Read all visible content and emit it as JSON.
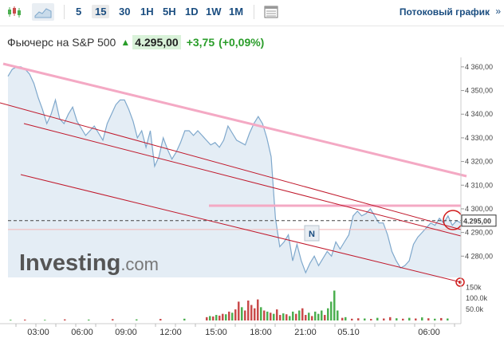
{
  "toolbar": {
    "timeframes": [
      "5",
      "15",
      "30",
      "1H",
      "5H",
      "1D",
      "1W",
      "1M"
    ],
    "active_timeframe": "15",
    "stream_label": "Потоковый график",
    "stream_arrow": "»"
  },
  "quote": {
    "name": "Фьючерс на S&P 500",
    "price": "4.295,00",
    "change": "+3,75",
    "change_pct": "(+0,09%)"
  },
  "watermark": {
    "brand": "Investing",
    "suffix": ".com"
  },
  "marker": {
    "label": "N"
  },
  "colors": {
    "price_line": "#7fa8cc",
    "price_fill": "#e4edf5",
    "channel": "#c0182b",
    "pink": "#f4a9c4",
    "up_volume": "#4caf50",
    "down_volume": "#c94b4b"
  },
  "chart_data": {
    "type": "area",
    "x_tick_labels": [
      "03:00",
      "06:00",
      "09:00",
      "12:00",
      "15:00",
      "18:00",
      "21:00",
      "05.10",
      "06:00"
    ],
    "y_ticks": [
      4280,
      4290,
      4300,
      4310,
      4320,
      4330,
      4340,
      4350,
      4360
    ],
    "y_tick_labels": [
      "4 280,00",
      "4 290,00",
      "4 300,00",
      "4 310,00",
      "4 320,00",
      "4 330,00",
      "4 340,00",
      "4 350,00",
      "4 360,00"
    ],
    "ylim": [
      4271,
      4364
    ],
    "last_price": 4295,
    "last_price_label": "4.295,00",
    "reference_level": 4291.25,
    "series": [
      {
        "values": [
          4356,
          4359,
          4360,
          4360,
          4359,
          4357,
          4353,
          4347,
          4342,
          4336,
          4340,
          4346,
          4338,
          4336,
          4340,
          4343,
          4337,
          4334,
          4331,
          4333,
          4335,
          4332,
          4329,
          4336,
          4340,
          4344,
          4346,
          4346,
          4342,
          4337,
          4330,
          4333,
          4326,
          4333,
          4318,
          4322,
          4330,
          4325,
          4321,
          4324,
          4328,
          4333,
          4333,
          4331,
          4333,
          4331,
          4329,
          4327,
          4328,
          4326,
          4329,
          4335,
          4332,
          4329,
          4328,
          4327,
          4332,
          4336,
          4339,
          4336,
          4330,
          4322,
          4296,
          4284,
          4286,
          4289,
          4278,
          4285,
          4278,
          4273,
          4277,
          4280,
          4276,
          4279,
          4282,
          4280,
          4286,
          4283,
          4286,
          4289,
          4297,
          4299,
          4297,
          4298,
          4300,
          4297,
          4294,
          4294,
          4289,
          4282,
          4278,
          4275,
          4276,
          4278,
          4285,
          4288,
          4290,
          4292,
          4294,
          4293,
          4296,
          4294,
          4297,
          4293,
          4295,
          4294
        ]
      }
    ],
    "volume": {
      "tick_labels": [
        "150k",
        "100.0k",
        "50.0k"
      ],
      "ticks": [
        150000,
        100000,
        50000
      ],
      "ylim": [
        0,
        180000
      ],
      "bars": [
        {
          "x": 12,
          "v": 3000,
          "up": true
        },
        {
          "x": 30,
          "v": 4000,
          "up": false
        },
        {
          "x": 55,
          "v": 3000,
          "up": true
        },
        {
          "x": 80,
          "v": 5000,
          "up": false
        },
        {
          "x": 110,
          "v": 4000,
          "up": true
        },
        {
          "x": 140,
          "v": 6000,
          "up": false
        },
        {
          "x": 170,
          "v": 5000,
          "up": true
        },
        {
          "x": 200,
          "v": 7000,
          "up": false
        },
        {
          "x": 230,
          "v": 8000,
          "up": true
        },
        {
          "x": 258,
          "v": 15000,
          "up": false
        },
        {
          "x": 262,
          "v": 20000,
          "up": true
        },
        {
          "x": 266,
          "v": 18000,
          "up": false
        },
        {
          "x": 270,
          "v": 25000,
          "up": true
        },
        {
          "x": 274,
          "v": 22000,
          "up": false
        },
        {
          "x": 278,
          "v": 30000,
          "up": false
        },
        {
          "x": 282,
          "v": 28000,
          "up": true
        },
        {
          "x": 286,
          "v": 40000,
          "up": false
        },
        {
          "x": 290,
          "v": 35000,
          "up": true
        },
        {
          "x": 294,
          "v": 50000,
          "up": false
        },
        {
          "x": 298,
          "v": 85000,
          "up": false
        },
        {
          "x": 302,
          "v": 60000,
          "up": true
        },
        {
          "x": 306,
          "v": 45000,
          "up": false
        },
        {
          "x": 310,
          "v": 90000,
          "up": false
        },
        {
          "x": 314,
          "v": 70000,
          "up": false
        },
        {
          "x": 318,
          "v": 55000,
          "up": false
        },
        {
          "x": 322,
          "v": 95000,
          "up": false
        },
        {
          "x": 326,
          "v": 60000,
          "up": true
        },
        {
          "x": 330,
          "v": 45000,
          "up": false
        },
        {
          "x": 334,
          "v": 40000,
          "up": true
        },
        {
          "x": 338,
          "v": 35000,
          "up": false
        },
        {
          "x": 342,
          "v": 30000,
          "up": true
        },
        {
          "x": 346,
          "v": 50000,
          "up": false
        },
        {
          "x": 350,
          "v": 25000,
          "up": false
        },
        {
          "x": 354,
          "v": 32000,
          "up": true
        },
        {
          "x": 358,
          "v": 28000,
          "up": false
        },
        {
          "x": 362,
          "v": 20000,
          "up": true
        },
        {
          "x": 366,
          "v": 40000,
          "up": true
        },
        {
          "x": 370,
          "v": 30000,
          "up": false
        },
        {
          "x": 374,
          "v": 45000,
          "up": true
        },
        {
          "x": 378,
          "v": 55000,
          "up": false
        },
        {
          "x": 382,
          "v": 25000,
          "up": false
        },
        {
          "x": 386,
          "v": 35000,
          "up": true
        },
        {
          "x": 390,
          "v": 20000,
          "up": false
        },
        {
          "x": 394,
          "v": 40000,
          "up": true
        },
        {
          "x": 398,
          "v": 30000,
          "up": true
        },
        {
          "x": 402,
          "v": 45000,
          "up": true
        },
        {
          "x": 406,
          "v": 25000,
          "up": false
        },
        {
          "x": 410,
          "v": 55000,
          "up": true
        },
        {
          "x": 414,
          "v": 85000,
          "up": true
        },
        {
          "x": 418,
          "v": 135000,
          "up": true
        },
        {
          "x": 422,
          "v": 45000,
          "up": true
        },
        {
          "x": 428,
          "v": 12000,
          "up": false
        },
        {
          "x": 432,
          "v": 15000,
          "up": true
        },
        {
          "x": 440,
          "v": 8000,
          "up": false
        },
        {
          "x": 448,
          "v": 10000,
          "up": false
        },
        {
          "x": 456,
          "v": 9000,
          "up": true
        },
        {
          "x": 464,
          "v": 7000,
          "up": false
        },
        {
          "x": 472,
          "v": 12000,
          "up": true
        },
        {
          "x": 480,
          "v": 9000,
          "up": false
        },
        {
          "x": 488,
          "v": 15000,
          "up": false
        },
        {
          "x": 496,
          "v": 10000,
          "up": true
        },
        {
          "x": 504,
          "v": 8000,
          "up": false
        },
        {
          "x": 512,
          "v": 12000,
          "up": true
        },
        {
          "x": 520,
          "v": 9000,
          "up": false
        },
        {
          "x": 528,
          "v": 14000,
          "up": true
        },
        {
          "x": 536,
          "v": 10000,
          "up": false
        },
        {
          "x": 544,
          "v": 8000,
          "up": true
        },
        {
          "x": 552,
          "v": 11000,
          "up": false
        },
        {
          "x": 560,
          "v": 9000,
          "up": true
        }
      ]
    },
    "annotations": [
      "descending red channel lines",
      "pink trendline",
      "pink horizontal level",
      "dashed last price line"
    ],
    "grid": false,
    "legend": "none"
  }
}
